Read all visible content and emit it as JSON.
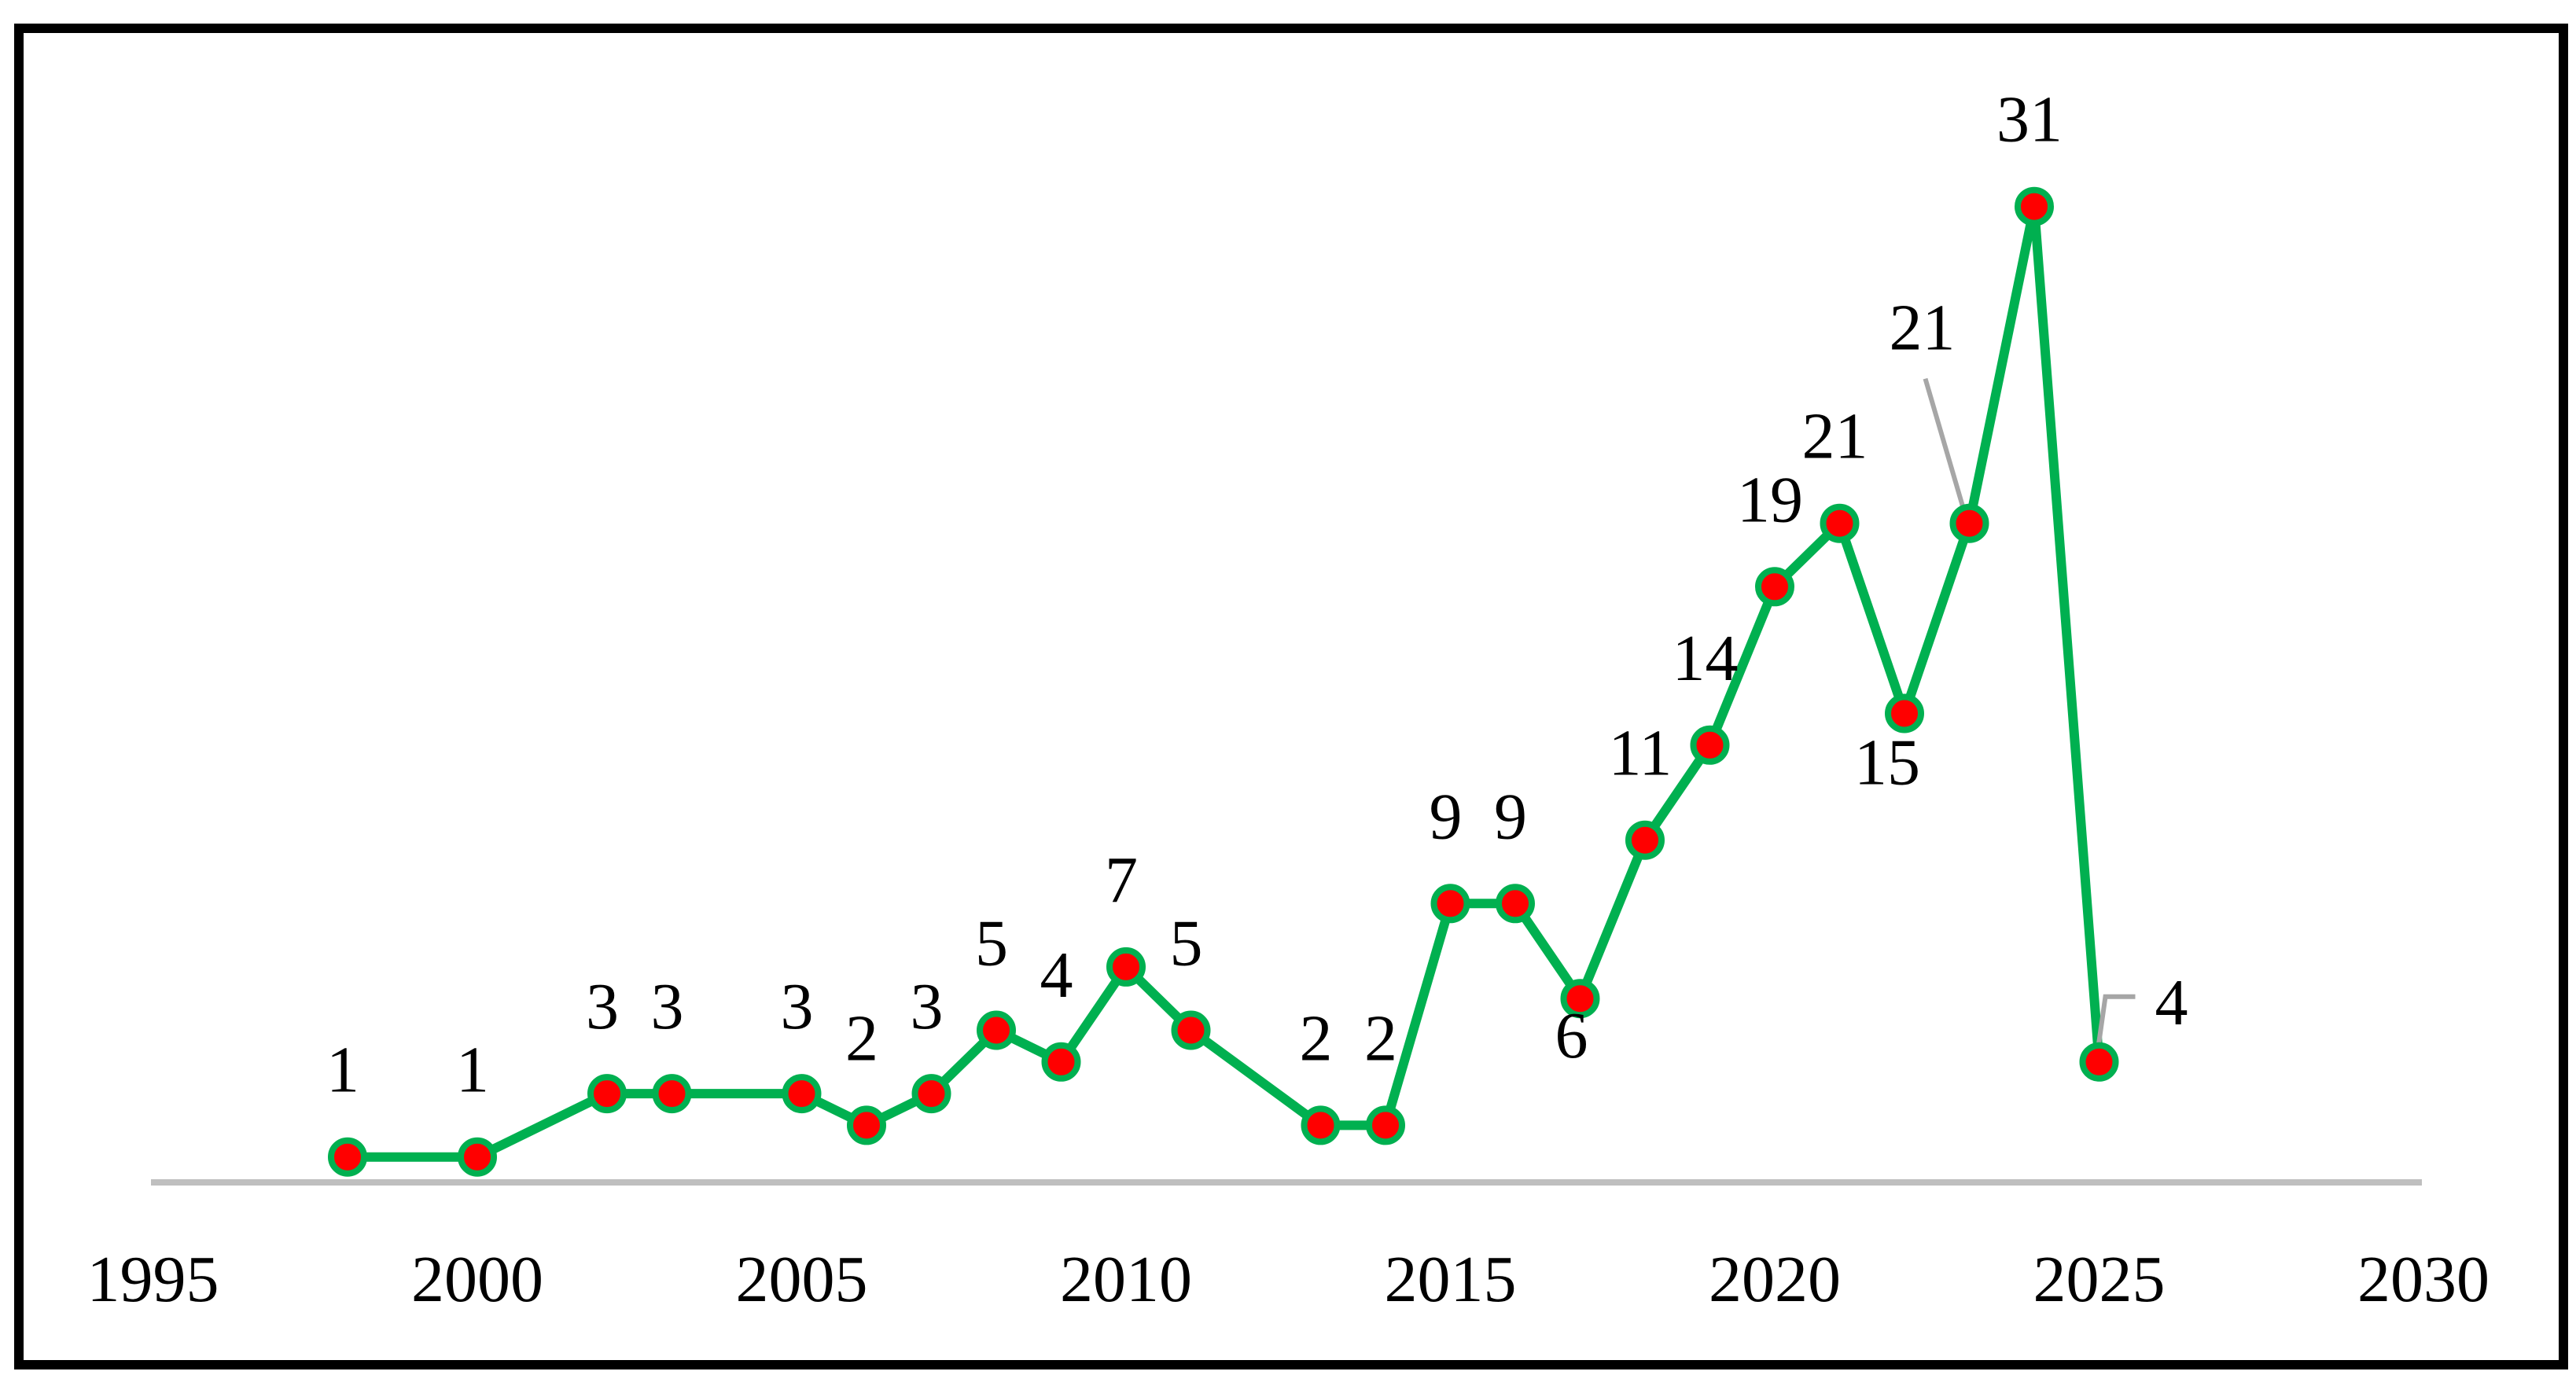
{
  "figure": {
    "background": "#FFFFFF",
    "border_color": "#000000",
    "text_color": "#000000"
  },
  "colors": {
    "line_green": "#00B050",
    "marker_red": "#FF0000",
    "marker_ring_green": "#00B050",
    "axis_line_gray": "#BFBFBF",
    "leader_line_gray": "#A6A6A6"
  },
  "chart_data": {
    "type": "line",
    "title": "",
    "xlabel": "",
    "ylabel": "",
    "grid": false,
    "legend": "none",
    "x_axis": {
      "ticks": [
        1995,
        2000,
        2005,
        2010,
        2015,
        2020,
        2025,
        2030
      ],
      "range": [
        1995,
        2030
      ]
    },
    "y_axis": {
      "visible": false,
      "baseline_value": 0
    },
    "series": [
      {
        "name": "series-1",
        "line_color": "#00B050",
        "marker_fill": "#FF0000",
        "marker_ring": "#00B050",
        "points": [
          {
            "year": 1998,
            "value": 1,
            "label": "1",
            "label_placement": "above"
          },
          {
            "year": 2000,
            "value": 1,
            "label": "1",
            "label_placement": "above"
          },
          {
            "year": 2002,
            "value": 3,
            "label": "3",
            "label_placement": "above"
          },
          {
            "year": 2003,
            "value": 3,
            "label": "3",
            "label_placement": "above"
          },
          {
            "year": 2005,
            "value": 3,
            "label": "3",
            "label_placement": "above"
          },
          {
            "year": 2006,
            "value": 2,
            "label": "2",
            "label_placement": "above"
          },
          {
            "year": 2007,
            "value": 3,
            "label": "3",
            "label_placement": "above"
          },
          {
            "year": 2008,
            "value": 5,
            "label": "5",
            "label_placement": "above"
          },
          {
            "year": 2009,
            "value": 4,
            "label": "4",
            "label_placement": "above"
          },
          {
            "year": 2010,
            "value": 7,
            "label": "7",
            "label_placement": "above"
          },
          {
            "year": 2011,
            "value": 5,
            "label": "5",
            "label_placement": "above"
          },
          {
            "year": 2013,
            "value": 2,
            "label": "2",
            "label_placement": "above"
          },
          {
            "year": 2014,
            "value": 2,
            "label": "2",
            "label_placement": "above"
          },
          {
            "year": 2015,
            "value": 9,
            "label": "9",
            "label_placement": "above"
          },
          {
            "year": 2016,
            "value": 9,
            "label": "9",
            "label_placement": "above"
          },
          {
            "year": 2017,
            "value": 6,
            "label": "6",
            "label_placement": "below",
            "label_dx": -11,
            "label_dy": 75
          },
          {
            "year": 2018,
            "value": 11,
            "label": "11",
            "label_placement": "above"
          },
          {
            "year": 2019,
            "value": 14,
            "label": "14",
            "label_placement": "above"
          },
          {
            "year": 2020,
            "value": 19,
            "label": "19",
            "label_placement": "above"
          },
          {
            "year": 2021,
            "value": 21,
            "label": "21",
            "label_placement": "above"
          },
          {
            "year": 2022,
            "value": 15,
            "label": "15",
            "label_placement": "below",
            "label_dx": -22,
            "label_dy": 90
          },
          {
            "year": 2023,
            "value": 21,
            "label": "21",
            "label_placement": "leader-above"
          },
          {
            "year": 2024,
            "value": 31,
            "label": "31",
            "label_placement": "above"
          },
          {
            "year": 2025,
            "value": 4,
            "label": "4",
            "label_placement": "leader-right"
          }
        ]
      }
    ]
  }
}
